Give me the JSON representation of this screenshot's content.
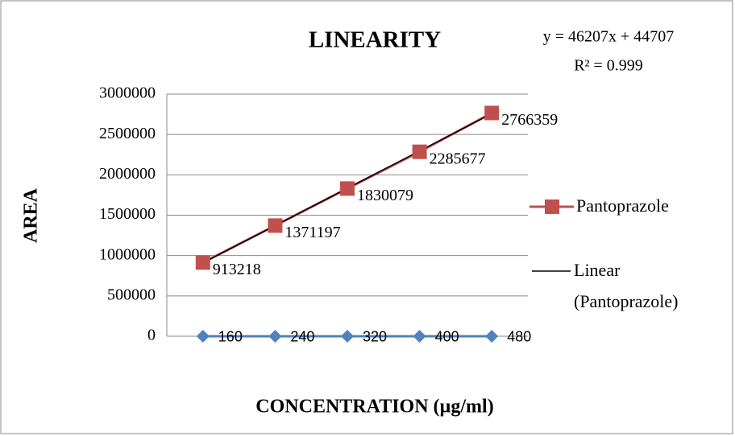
{
  "chart_data": {
    "type": "line",
    "title": "LINEARITY",
    "x_label": "CONCENTRATION (µg/ml)",
    "y_label": "AREA",
    "categories": [
      null,
      null,
      null,
      null,
      null
    ],
    "series": [
      {
        "color": "#4f81bd",
        "marker": "diamond",
        "values": [
          160,
          240,
          320,
          400,
          480
        ]
      },
      {
        "name": "Pantoprazole",
        "color": "#c0504d",
        "marker": "square",
        "values": [
          913218,
          1371197,
          1830079,
          2285677,
          2766359
        ]
      }
    ],
    "trendline": {
      "name": "Linear (Pantoprazole)",
      "color": "#000000",
      "equation": "y = 46207x + 44707",
      "r_squared": "R² = 0.999"
    },
    "ylim": [
      0,
      3000000
    ],
    "yticks": [
      0,
      500000,
      1000000,
      1500000,
      2000000,
      2500000,
      3000000
    ],
    "grid": true,
    "legend": "right"
  }
}
